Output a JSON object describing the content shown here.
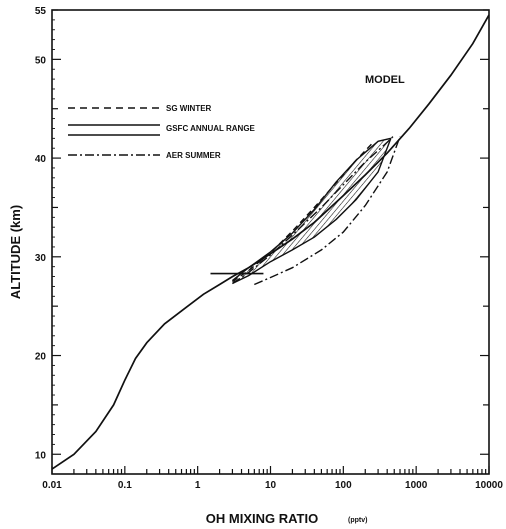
{
  "chart_data": {
    "type": "line",
    "xlabel": "OH MIXING RATIO",
    "xlabel_unit": "(pptv)",
    "ylabel": "ALTITUDE (km)",
    "x_scale": "log",
    "xlim": [
      0.01,
      10000
    ],
    "ylim": [
      8,
      55
    ],
    "x_ticks": [
      "0.01",
      "0.1",
      "1",
      "10",
      "100",
      "1000",
      "10000"
    ],
    "y_ticks": [
      "10",
      "20",
      "30",
      "40",
      "50",
      "55"
    ],
    "legend": {
      "placement": "upper-left",
      "entries": [
        "SG WINTER",
        "GSFC ANNUAL RANGE",
        "AER SUMMER"
      ]
    },
    "annotations": [
      "MODEL"
    ],
    "series": [
      {
        "name": "MODEL",
        "style": "solid",
        "x": [
          0.01,
          0.02,
          0.04,
          0.07,
          0.1,
          0.14,
          0.2,
          0.35,
          0.7,
          1.2,
          2,
          3,
          5,
          10,
          20,
          40,
          100,
          200,
          400,
          800,
          1500,
          3000,
          6000,
          10000
        ],
        "y": [
          8.5,
          10,
          12.3,
          15,
          17.5,
          19.7,
          21.3,
          23.2,
          24.9,
          26.2,
          27.2,
          28,
          28.9,
          30.3,
          31.8,
          33.5,
          36.2,
          38.3,
          40.5,
          43,
          45.5,
          48.4,
          51.6,
          54.5
        ]
      },
      {
        "name": "SG WINTER",
        "style": "dashed",
        "x": [
          3,
          5,
          10,
          20,
          40,
          80,
          150,
          250
        ],
        "y": [
          27.5,
          28.6,
          30.4,
          32.6,
          35,
          37.5,
          39.8,
          41.5
        ]
      },
      {
        "name": "GSFC ANNUAL RANGE",
        "style": "solid-band",
        "x": [
          3,
          5,
          10,
          20,
          40,
          80,
          150,
          300,
          450
        ],
        "y_low": [
          27.3,
          28.1,
          29.5,
          30.7,
          32,
          33.8,
          35.8,
          38.6,
          42
        ],
        "y_high": [
          27.6,
          28.9,
          30.5,
          32.4,
          34.8,
          37.6,
          39.8,
          41.7,
          42
        ]
      },
      {
        "name": "AER SUMMER",
        "style": "dash-dot",
        "x_low": [
          6,
          10,
          20,
          50,
          100,
          200,
          400,
          600
        ],
        "y_low": [
          27.2,
          27.9,
          28.9,
          30.7,
          32.5,
          35.2,
          38.6,
          42.2
        ],
        "x_high": [
          3,
          5,
          10,
          20,
          50,
          100,
          200,
          400,
          500
        ],
        "y_high": [
          27.3,
          28.4,
          30.2,
          32.2,
          35,
          37.3,
          39.6,
          41.6,
          42.3
        ]
      }
    ]
  }
}
